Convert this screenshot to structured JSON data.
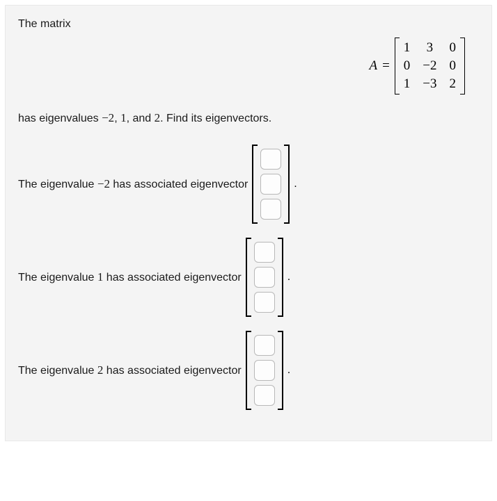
{
  "intro": "The matrix",
  "matrix": {
    "label": "A",
    "equals": "=",
    "rows": [
      [
        "1",
        "3",
        "0"
      ],
      [
        "0",
        "−2",
        "0"
      ],
      [
        "1",
        "−3",
        "2"
      ]
    ]
  },
  "question_parts": {
    "prefix": "has eigenvalues ",
    "val1": "−2",
    "sep1": ", ",
    "val2": "1",
    "sep2": ", and ",
    "val3": "2",
    "suffix": ". Find its eigenvectors."
  },
  "rows": [
    {
      "prefix": "The eigenvalue ",
      "value": "−2",
      "suffix": " has associated eigenvector "
    },
    {
      "prefix": "The eigenvalue ",
      "value": "1",
      "suffix": " has associated eigenvector "
    },
    {
      "prefix": "The eigenvalue ",
      "value": "2",
      "suffix": " has associated eigenvector "
    }
  ],
  "period": ".",
  "colors": {
    "background": "#f4f4f4",
    "text": "#1a1a1a",
    "input_border": "#b8b8b8"
  }
}
